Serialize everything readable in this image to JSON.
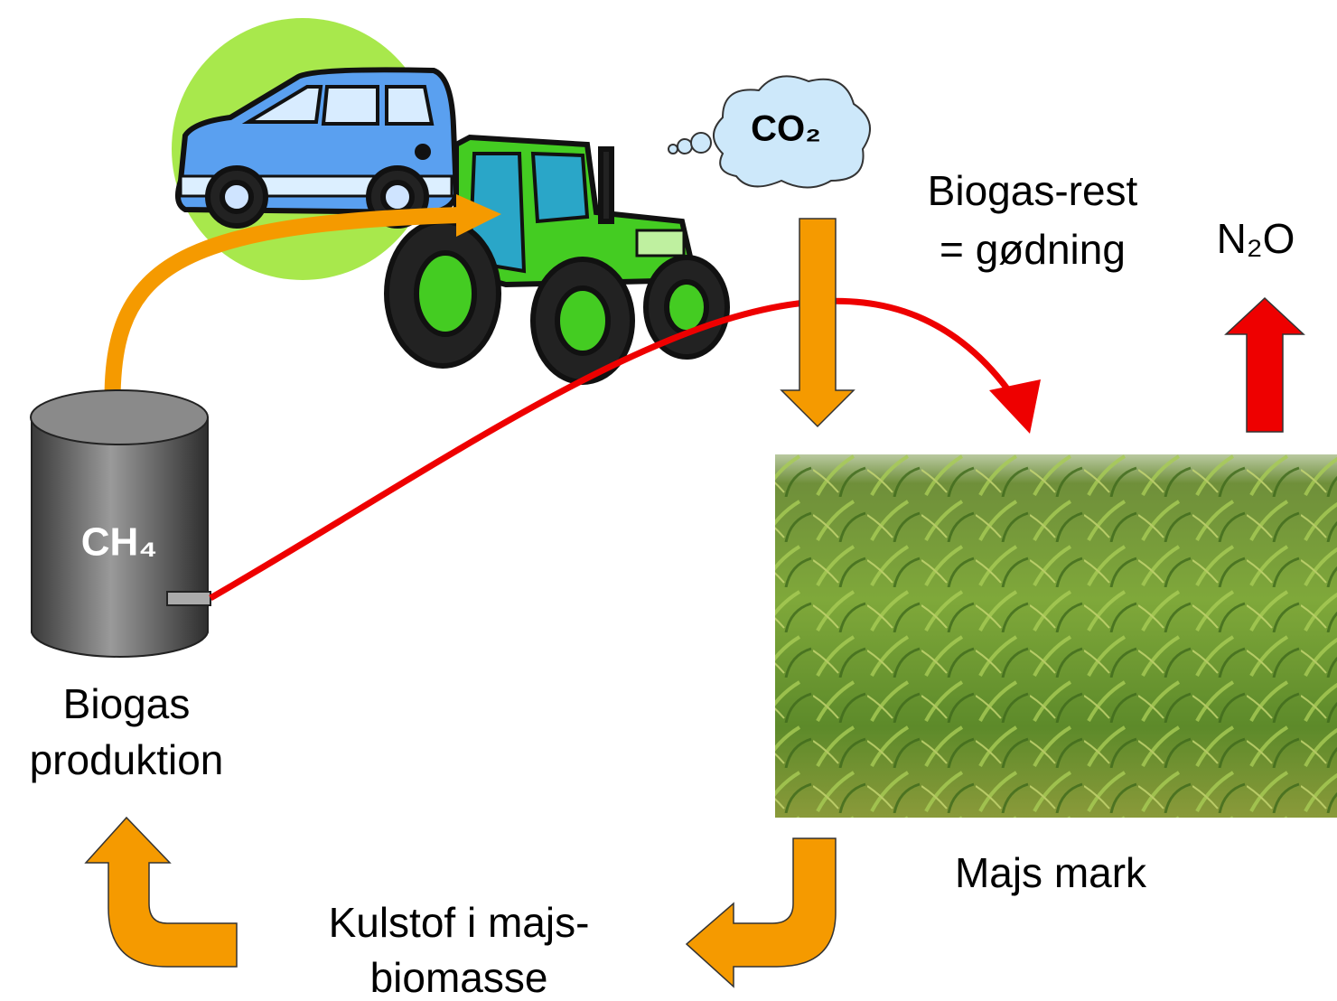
{
  "tank": {
    "gas": "CH₄",
    "label": [
      "Biogas",
      "produktion"
    ]
  },
  "emission": {
    "co2": "CO₂",
    "n2o": "N₂O"
  },
  "fertilizer": {
    "label": [
      "Biogas-rest",
      "= gødning"
    ]
  },
  "field": {
    "label": "Majs mark"
  },
  "biomass": {
    "label": [
      "Kulstof i majs-",
      "biomasse"
    ]
  }
}
